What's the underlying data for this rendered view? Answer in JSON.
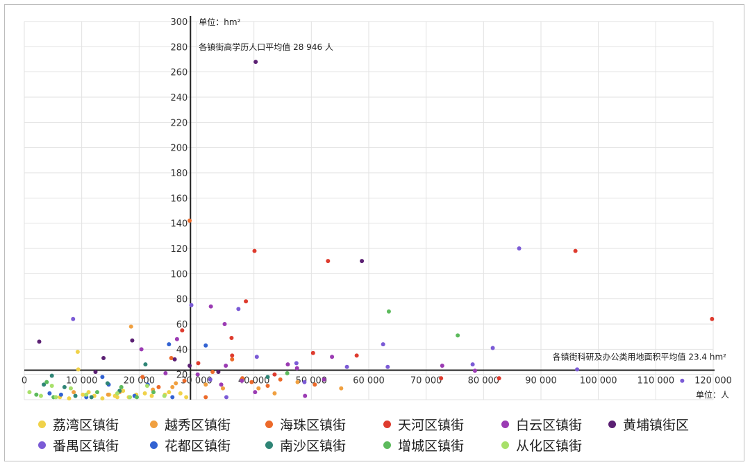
{
  "chart_data": {
    "type": "scatter",
    "y_unit_label": "单位：hm²",
    "x_unit_label": "单位：人",
    "xlim": [
      0,
      120000
    ],
    "ylim": [
      0,
      300
    ],
    "x_ticks": [
      0,
      10000,
      20000,
      30000,
      40000,
      50000,
      60000,
      70000,
      80000,
      90000,
      100000,
      110000,
      120000
    ],
    "x_tick_labels": [
      "0",
      "10 000",
      "20 000",
      "30 000",
      "40 000",
      "50 000",
      "60 000",
      "70 000",
      "80 000",
      "90 000",
      "100 000",
      "110 000",
      "120 000"
    ],
    "y_ticks": [
      20,
      40,
      60,
      80,
      100,
      120,
      140,
      160,
      180,
      200,
      220,
      240,
      260,
      280,
      300
    ],
    "y_tick_labels": [
      "20",
      "40",
      "60",
      "80",
      "100",
      "120",
      "140",
      "160",
      "180",
      "200",
      "220",
      "240",
      "260",
      "280",
      "300"
    ],
    "x_mean": 28946,
    "y_mean": 23.4,
    "x_mean_label": "各镇街高学历人口平均值 28 946 人",
    "y_mean_label": "各镇街科研及办公类用地面积平均值 23.4 hm²",
    "grid": true,
    "legend_position": "bottom",
    "series": [
      {
        "name": "荔湾区镇街",
        "color": "#f0d24a",
        "points": [
          [
            9400,
            24
          ],
          [
            9300,
            38
          ],
          [
            6200,
            2
          ],
          [
            7800,
            1
          ],
          [
            10200,
            4
          ],
          [
            12200,
            3
          ],
          [
            14800,
            4
          ],
          [
            15800,
            3
          ],
          [
            17200,
            7
          ],
          [
            18200,
            2
          ],
          [
            21000,
            5
          ],
          [
            22200,
            3
          ],
          [
            24500,
            4
          ],
          [
            25200,
            6
          ],
          [
            27200,
            5
          ],
          [
            28200,
            2
          ],
          [
            11200,
            6
          ],
          [
            16200,
            2
          ],
          [
            19500,
            4
          ],
          [
            13600,
            1
          ]
        ]
      },
      {
        "name": "越秀区镇街",
        "color": "#f0a040",
        "points": [
          [
            18600,
            58
          ],
          [
            8600,
            6
          ],
          [
            14600,
            4
          ],
          [
            16600,
            6
          ],
          [
            25800,
            10
          ],
          [
            26400,
            13
          ],
          [
            31600,
            12
          ],
          [
            34600,
            9
          ],
          [
            40800,
            9
          ],
          [
            43600,
            5
          ],
          [
            47600,
            14
          ],
          [
            55200,
            9
          ],
          [
            22400,
            8
          ]
        ]
      },
      {
        "name": "海珠区镇街",
        "color": "#ec6a2a",
        "points": [
          [
            28800,
            142
          ],
          [
            25600,
            33
          ],
          [
            27900,
            15
          ],
          [
            31600,
            2
          ],
          [
            36200,
            32
          ],
          [
            38000,
            17
          ],
          [
            42400,
            11
          ],
          [
            32800,
            22
          ],
          [
            39600,
            14
          ],
          [
            44600,
            16
          ],
          [
            20600,
            18
          ],
          [
            23400,
            10
          ],
          [
            50600,
            12
          ]
        ]
      },
      {
        "name": "天河区镇街",
        "color": "#de3b2e",
        "points": [
          [
            40100,
            118
          ],
          [
            52900,
            110
          ],
          [
            96000,
            118
          ],
          [
            119800,
            64
          ],
          [
            38600,
            78
          ],
          [
            36100,
            49
          ],
          [
            36200,
            35
          ],
          [
            30300,
            29
          ],
          [
            57900,
            35
          ],
          [
            50300,
            37
          ],
          [
            72600,
            17
          ],
          [
            82700,
            17
          ],
          [
            43600,
            20
          ],
          [
            27500,
            55
          ]
        ]
      },
      {
        "name": "白云区镇街",
        "color": "#9b3bb3",
        "points": [
          [
            32500,
            74
          ],
          [
            34900,
            60
          ],
          [
            20400,
            40
          ],
          [
            26600,
            48
          ],
          [
            37900,
            15
          ],
          [
            40200,
            6
          ],
          [
            45900,
            28
          ],
          [
            48900,
            3
          ],
          [
            53600,
            34
          ],
          [
            72800,
            27
          ],
          [
            52200,
            16
          ],
          [
            34300,
            12
          ],
          [
            35100,
            27
          ],
          [
            24600,
            21
          ],
          [
            30200,
            20
          ],
          [
            78500,
            23
          ],
          [
            47500,
            25
          ]
        ]
      },
      {
        "name": "黄埔镇街区",
        "color": "#5b2073",
        "points": [
          [
            40300,
            268
          ],
          [
            58800,
            110
          ],
          [
            18800,
            47
          ],
          [
            13800,
            33
          ],
          [
            2600,
            46
          ],
          [
            26200,
            32
          ],
          [
            28800,
            27
          ],
          [
            33800,
            22
          ],
          [
            12400,
            22
          ]
        ]
      },
      {
        "name": "番禺区镇街",
        "color": "#7b5bd6",
        "points": [
          [
            8500,
            64
          ],
          [
            86200,
            120
          ],
          [
            29100,
            75
          ],
          [
            37300,
            72
          ],
          [
            62500,
            44
          ],
          [
            81600,
            41
          ],
          [
            40500,
            34
          ],
          [
            47400,
            29
          ],
          [
            63300,
            26
          ],
          [
            78100,
            28
          ],
          [
            96300,
            24
          ],
          [
            114600,
            15
          ],
          [
            56200,
            26
          ],
          [
            48800,
            14
          ],
          [
            35200,
            2
          ],
          [
            32400,
            16
          ]
        ]
      },
      {
        "name": "花都区镇街",
        "color": "#3262d2",
        "points": [
          [
            31600,
            43
          ],
          [
            25200,
            44
          ],
          [
            13600,
            18
          ],
          [
            21500,
            12
          ],
          [
            6400,
            4
          ],
          [
            14700,
            12
          ],
          [
            10800,
            2
          ],
          [
            25800,
            2
          ],
          [
            19200,
            3
          ],
          [
            4400,
            5
          ]
        ]
      },
      {
        "name": "南沙区镇街",
        "color": "#2f8576",
        "points": [
          [
            21100,
            28
          ],
          [
            4800,
            19
          ],
          [
            16600,
            7
          ],
          [
            8900,
            3
          ],
          [
            14500,
            13
          ],
          [
            42400,
            18
          ],
          [
            3400,
            12
          ],
          [
            7000,
            10
          ],
          [
            11700,
            2
          ]
        ]
      },
      {
        "name": "增城区镇街",
        "color": "#5cba5c",
        "points": [
          [
            63500,
            70
          ],
          [
            75500,
            51
          ],
          [
            45800,
            21
          ],
          [
            2100,
            4
          ],
          [
            5100,
            2
          ],
          [
            16900,
            10
          ],
          [
            22500,
            6
          ],
          [
            3900,
            14
          ],
          [
            19600,
            2
          ],
          [
            12700,
            6
          ]
        ]
      },
      {
        "name": "从化区镇街",
        "color": "#a8e06a",
        "points": [
          [
            900,
            6
          ],
          [
            2900,
            3
          ],
          [
            4800,
            11
          ],
          [
            8100,
            9
          ],
          [
            10800,
            4
          ],
          [
            16200,
            5
          ],
          [
            18400,
            2
          ],
          [
            21400,
            11
          ],
          [
            24400,
            3
          ],
          [
            5500,
            2
          ]
        ]
      }
    ]
  }
}
